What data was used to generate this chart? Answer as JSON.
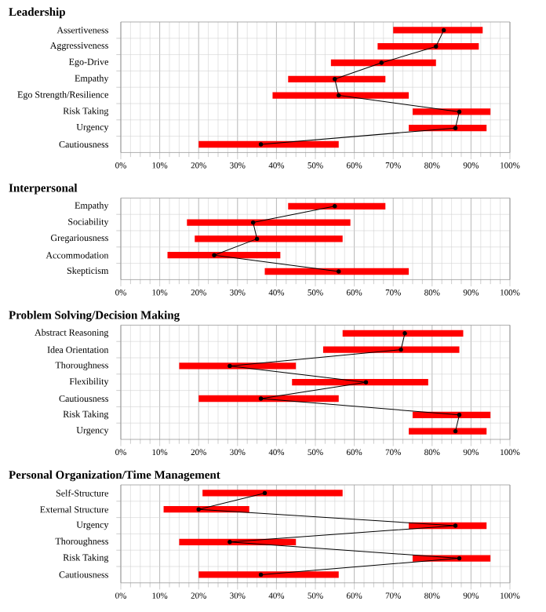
{
  "chart_data": [
    {
      "type": "bar",
      "orientation": "horizontal",
      "title": "Leadership",
      "categories": [
        "Assertiveness",
        "Aggressiveness",
        "Ego-Drive",
        "Empathy",
        "Ego Strength/Resilience",
        "Risk Taking",
        "Urgency",
        "Cautiousness"
      ],
      "xlim": [
        0,
        100
      ],
      "xticks": [
        {
          "value": 0,
          "label": "0%"
        },
        {
          "value": 10,
          "label": "10%"
        },
        {
          "value": 20,
          "label": "20%"
        },
        {
          "value": 30,
          "label": "30%"
        },
        {
          "value": 40,
          "label": "40%"
        },
        {
          "value": 50,
          "label": "50%"
        },
        {
          "value": 60,
          "label": "60%"
        },
        {
          "value": 70,
          "label": "70%"
        },
        {
          "value": 80,
          "label": "80%"
        },
        {
          "value": 90,
          "label": "90%"
        },
        {
          "value": 100,
          "label": "100%"
        }
      ],
      "grid": true,
      "series": [
        {
          "color": "#ff0000",
          "base": [
            70,
            66,
            54,
            43,
            39,
            75,
            74,
            20
          ],
          "values": [
            23,
            26,
            27,
            25,
            35,
            20,
            20,
            36
          ]
        },
        {
          "type": "line",
          "color": "#000000",
          "marker": "circle",
          "values": [
            83,
            81,
            67,
            55,
            56,
            87,
            86,
            36
          ]
        }
      ]
    },
    {
      "type": "bar",
      "orientation": "horizontal",
      "title": "Interpersonal",
      "categories": [
        "Empathy",
        "Sociability",
        "Gregariousness",
        "Accommodation",
        "Skepticism"
      ],
      "xlim": [
        0,
        100
      ],
      "xticks": [
        {
          "value": 0,
          "label": "0%"
        },
        {
          "value": 10,
          "label": "10%"
        },
        {
          "value": 20,
          "label": "20%"
        },
        {
          "value": 30,
          "label": "30%"
        },
        {
          "value": 40,
          "label": "40%"
        },
        {
          "value": 50,
          "label": "50%"
        },
        {
          "value": 60,
          "label": "60%"
        },
        {
          "value": 70,
          "label": "70%"
        },
        {
          "value": 80,
          "label": "80%"
        },
        {
          "value": 90,
          "label": "90%"
        },
        {
          "value": 100,
          "label": "100%"
        }
      ],
      "grid": true,
      "series": [
        {
          "color": "#ff0000",
          "base": [
            43,
            17,
            19,
            12,
            37
          ],
          "values": [
            25,
            42,
            38,
            29,
            37
          ]
        },
        {
          "type": "line",
          "color": "#000000",
          "marker": "circle",
          "values": [
            55,
            34,
            35,
            24,
            56
          ]
        }
      ]
    },
    {
      "type": "bar",
      "orientation": "horizontal",
      "title": "Problem Solving/Decision Making",
      "categories": [
        "Abstract Reasoning",
        "Idea Orientation",
        "Thoroughness",
        "Flexibility",
        "Cautiousness",
        "Risk Taking",
        "Urgency"
      ],
      "xlim": [
        0,
        100
      ],
      "xticks": [
        {
          "value": 0,
          "label": "0%"
        },
        {
          "value": 10,
          "label": "10%"
        },
        {
          "value": 20,
          "label": "20%"
        },
        {
          "value": 30,
          "label": "30%"
        },
        {
          "value": 40,
          "label": "40%"
        },
        {
          "value": 50,
          "label": "50%"
        },
        {
          "value": 60,
          "label": "60%"
        },
        {
          "value": 70,
          "label": "70%"
        },
        {
          "value": 80,
          "label": "80%"
        },
        {
          "value": 90,
          "label": "90%"
        },
        {
          "value": 100,
          "label": "100%"
        }
      ],
      "grid": true,
      "series": [
        {
          "color": "#ff0000",
          "base": [
            57,
            52,
            15,
            44,
            20,
            75,
            74
          ],
          "values": [
            31,
            35,
            30,
            35,
            36,
            20,
            20
          ]
        },
        {
          "type": "line",
          "color": "#000000",
          "marker": "circle",
          "values": [
            73,
            72,
            28,
            63,
            36,
            87,
            86
          ]
        }
      ]
    },
    {
      "type": "bar",
      "orientation": "horizontal",
      "title": "Personal Organization/Time Management",
      "categories": [
        "Self-Structure",
        "External Structure",
        "Urgency",
        "Thoroughness",
        "Risk Taking",
        "Cautiousness"
      ],
      "xlim": [
        0,
        100
      ],
      "xticks": [
        {
          "value": 0,
          "label": "0%"
        },
        {
          "value": 10,
          "label": "10%"
        },
        {
          "value": 20,
          "label": "20%"
        },
        {
          "value": 30,
          "label": "30%"
        },
        {
          "value": 40,
          "label": "40%"
        },
        {
          "value": 50,
          "label": "50%"
        },
        {
          "value": 60,
          "label": "60%"
        },
        {
          "value": 70,
          "label": "70%"
        },
        {
          "value": 80,
          "label": "80%"
        },
        {
          "value": 90,
          "label": "90%"
        },
        {
          "value": 100,
          "label": "100%"
        }
      ],
      "grid": true,
      "series": [
        {
          "color": "#ff0000",
          "base": [
            21,
            11,
            74,
            15,
            75,
            20
          ],
          "values": [
            36,
            22,
            20,
            30,
            20,
            36
          ]
        },
        {
          "type": "line",
          "color": "#000000",
          "marker": "circle",
          "values": [
            37,
            20,
            86,
            28,
            87,
            36
          ]
        }
      ]
    }
  ]
}
